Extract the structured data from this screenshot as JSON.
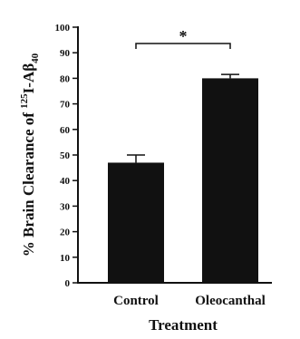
{
  "chart_data": {
    "type": "bar",
    "categories": [
      "Control",
      "Oleocanthal"
    ],
    "values": [
      47,
      80
    ],
    "errors": [
      3,
      1.5
    ],
    "xlabel": "Treatment",
    "ylabel_parts": {
      "prefix": "% Brain Clearance of ",
      "superscript": "125",
      "main": "I-Aβ",
      "subscript": "40"
    },
    "ylim": [
      0,
      100
    ],
    "yticks": [
      "0",
      "10",
      "20",
      "30",
      "40",
      "50",
      "60",
      "70",
      "80",
      "90",
      "100"
    ],
    "significance": {
      "between": [
        "Control",
        "Oleocanthal"
      ],
      "label": "*"
    },
    "bar_color": "#111111",
    "grid": false,
    "legend": "none"
  }
}
